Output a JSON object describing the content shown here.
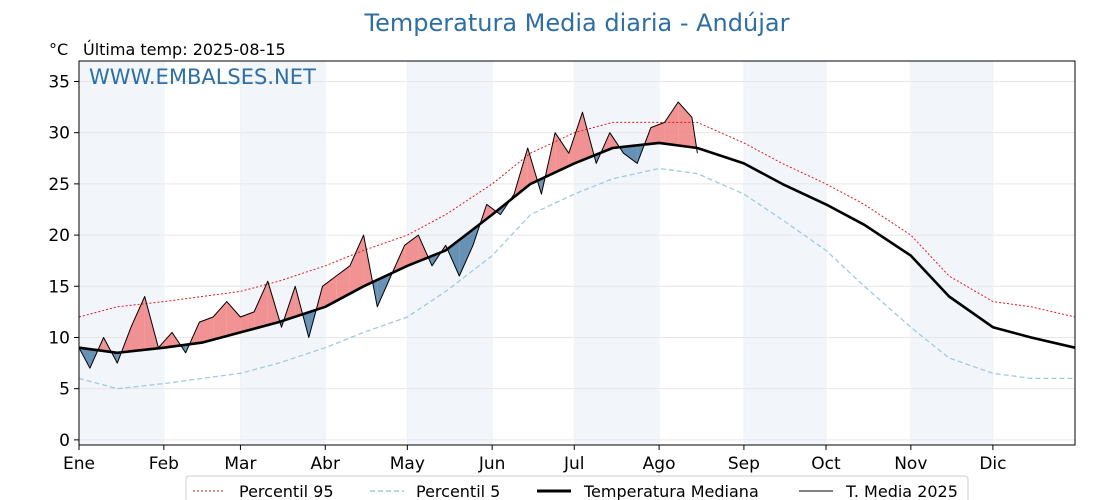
{
  "title": "Temperatura Media diaria - Andújar",
  "unit": "°C",
  "last_temp_label": "Última temp: 2025-08-15",
  "watermark": "WWW.EMBALSES.NET",
  "colors": {
    "title": "#2e6ea3",
    "p95": "#e31a1c",
    "p5": "#9ecae1",
    "median": "#000000",
    "current": "#000000",
    "above": "#f08080",
    "below": "#4f7fa8",
    "band": "#f2f6fb"
  },
  "chart_data": {
    "type": "line",
    "xlabel": "",
    "ylabel": "°C",
    "ylim": [
      -0.5,
      37
    ],
    "yticks": [
      0,
      5,
      10,
      15,
      20,
      25,
      30,
      35
    ],
    "months": [
      "Ene",
      "Feb",
      "Mar",
      "Abr",
      "May",
      "Jun",
      "Jul",
      "Ago",
      "Sep",
      "Oct",
      "Nov",
      "Dic"
    ],
    "month_start_days": [
      1,
      32,
      60,
      91,
      121,
      152,
      182,
      213,
      244,
      274,
      305,
      335
    ],
    "grid": true,
    "legend_position": "bottom",
    "days": [
      1,
      15,
      32,
      46,
      60,
      74,
      91,
      105,
      121,
      135,
      152,
      166,
      182,
      196,
      213,
      227,
      244,
      258,
      274,
      288,
      305,
      319,
      335,
      349,
      365
    ],
    "series": [
      {
        "name": "Percentil 95",
        "style": "dotted-red",
        "values": [
          12,
          13,
          13.5,
          14,
          14.5,
          15.5,
          17,
          18.5,
          20,
          22,
          25,
          28,
          30,
          31,
          31,
          31,
          29,
          27,
          25,
          23,
          20,
          16,
          13.5,
          13,
          12
        ]
      },
      {
        "name": "Percentil 5",
        "style": "dashed-lightblue",
        "values": [
          6,
          5,
          5.5,
          6,
          6.5,
          7.5,
          9,
          10.5,
          12,
          14.5,
          18,
          22,
          24,
          25.5,
          26.5,
          26,
          24,
          21.5,
          18.5,
          15,
          11,
          8,
          6.5,
          6,
          6
        ]
      },
      {
        "name": "Temperatura Mediana",
        "style": "thick-black",
        "values": [
          9,
          8.5,
          9,
          9.5,
          10.5,
          11.5,
          13,
          15,
          17,
          18.5,
          22,
          25,
          27,
          28.5,
          29,
          28.5,
          27,
          25,
          23,
          21,
          18,
          14,
          11,
          10,
          9
        ]
      },
      {
        "name": "T. Media 2025",
        "style": "thin-black",
        "days": [
          1,
          5,
          10,
          15,
          20,
          25,
          30,
          35,
          40,
          45,
          50,
          55,
          60,
          65,
          70,
          75,
          80,
          85,
          90,
          95,
          100,
          105,
          110,
          115,
          120,
          125,
          130,
          135,
          140,
          145,
          150,
          155,
          160,
          165,
          170,
          175,
          180,
          185,
          190,
          195,
          200,
          205,
          210,
          215,
          220,
          225,
          227
        ],
        "values": [
          9,
          7,
          10,
          7.5,
          11,
          14,
          9,
          10.5,
          8.5,
          11.5,
          12,
          13.5,
          12,
          12.5,
          15.5,
          11,
          15,
          10,
          15,
          16,
          17,
          20,
          13,
          16,
          19,
          20,
          17,
          19,
          16,
          19,
          23,
          22,
          24,
          28.5,
          24,
          30,
          28,
          32,
          27,
          30,
          28,
          27,
          30.5,
          31,
          33,
          31.5,
          28
        ]
      }
    ]
  },
  "legend": [
    {
      "label": "Percentil 95"
    },
    {
      "label": "Percentil 5"
    },
    {
      "label": "Temperatura Mediana"
    },
    {
      "label": "T. Media 2025"
    }
  ]
}
